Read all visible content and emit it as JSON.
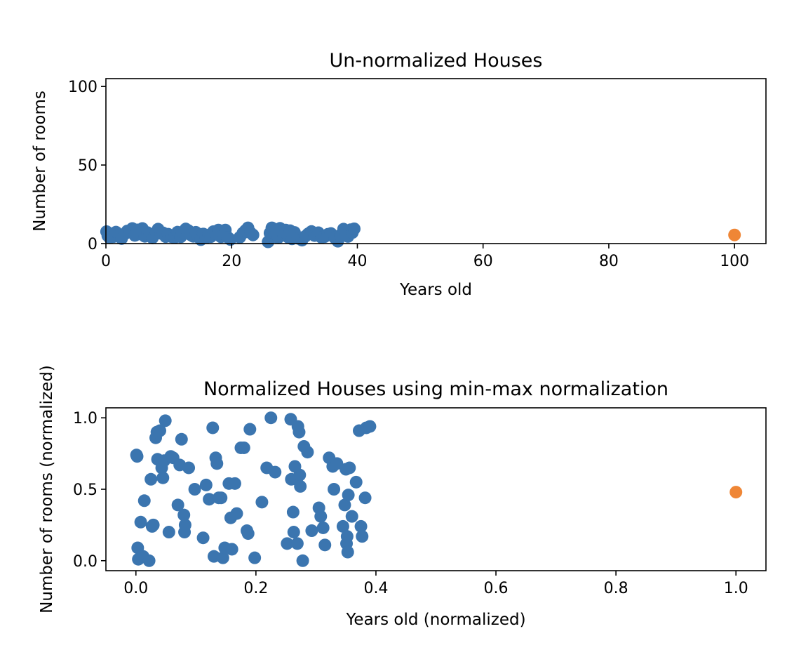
{
  "chart_data": [
    {
      "type": "scatter",
      "title": "Un-normalized Houses",
      "xlabel": "Years old",
      "ylabel": "Number of rooms",
      "xlim": [
        0,
        105
      ],
      "ylim": [
        0,
        105
      ],
      "xticks": [
        0,
        20,
        40,
        60,
        80,
        100
      ],
      "yticks": [
        0,
        50,
        100
      ],
      "xtick_labels": [
        "0",
        "20",
        "40",
        "60",
        "80",
        "100"
      ],
      "ytick_labels": [
        "0",
        "50",
        "100"
      ],
      "grid": false,
      "series": [
        {
          "color": "#3b75af",
          "points": [
            [
              0.1,
              7.6
            ],
            [
              0.3,
              5.0
            ],
            [
              0.6,
              3.7
            ],
            [
              1.2,
              4.4
            ],
            [
              1.6,
              7.3
            ],
            [
              2.1,
              5.1
            ],
            [
              2.5,
              3.2
            ],
            [
              3.0,
              6.2
            ],
            [
              3.4,
              8.0
            ],
            [
              3.8,
              7.7
            ],
            [
              4.2,
              9.6
            ],
            [
              4.6,
              5.2
            ],
            [
              5.0,
              8.7
            ],
            [
              5.3,
              6.1
            ],
            [
              5.8,
              9.6
            ],
            [
              6.2,
              4.6
            ],
            [
              6.6,
              7.0
            ],
            [
              7.0,
              5.8
            ],
            [
              7.4,
              3.6
            ],
            [
              7.7,
              5.6
            ],
            [
              8.0,
              7.0
            ],
            [
              8.3,
              9.2
            ],
            [
              8.7,
              6.5
            ],
            [
              9.1,
              6.8
            ],
            [
              9.5,
              4.4
            ],
            [
              9.9,
              6.0
            ],
            [
              10.4,
              4.4
            ],
            [
              10.9,
              3.8
            ],
            [
              11.4,
              7.3
            ],
            [
              11.9,
              4.3
            ],
            [
              12.3,
              6.7
            ],
            [
              12.7,
              9.3
            ],
            [
              13.1,
              8.3
            ],
            [
              13.5,
              5.5
            ],
            [
              13.9,
              4.6
            ],
            [
              14.3,
              7.2
            ],
            [
              14.7,
              4.1
            ],
            [
              15.1,
              2.5
            ],
            [
              15.5,
              6.1
            ],
            [
              15.9,
              3.8
            ],
            [
              16.3,
              5.4
            ],
            [
              16.7,
              4.4
            ],
            [
              17.1,
              7.6
            ],
            [
              17.5,
              6.3
            ],
            [
              17.9,
              8.6
            ],
            [
              18.3,
              4.3
            ],
            [
              18.7,
              6.2
            ],
            [
              19.0,
              8.6
            ],
            [
              19.4,
              3.9
            ],
            [
              19.8,
              2.6
            ],
            [
              21.3,
              4.0
            ],
            [
              21.8,
              6.7
            ],
            [
              22.2,
              8.3
            ],
            [
              22.6,
              10.0
            ],
            [
              23.0,
              6.9
            ],
            [
              23.4,
              5.5
            ],
            [
              25.8,
              1.1
            ],
            [
              26.1,
              6.7
            ],
            [
              26.4,
              10.0
            ],
            [
              26.8,
              6.4
            ],
            [
              27.1,
              8.7
            ],
            [
              27.4,
              3.7
            ],
            [
              27.7,
              9.7
            ],
            [
              28.0,
              7.5
            ],
            [
              28.3,
              5.4
            ],
            [
              28.6,
              8.6
            ],
            [
              29.0,
              4.0
            ],
            [
              29.3,
              8.2
            ],
            [
              29.6,
              3.0
            ],
            [
              30.0,
              7.1
            ],
            [
              30.6,
              3.3
            ],
            [
              31.2,
              2.2
            ],
            [
              31.7,
              4.6
            ],
            [
              32.2,
              6.3
            ],
            [
              32.7,
              7.7
            ],
            [
              33.2,
              5.1
            ],
            [
              33.8,
              6.9
            ],
            [
              34.3,
              3.9
            ],
            [
              34.8,
              4.4
            ],
            [
              35.3,
              5.9
            ],
            [
              35.8,
              6.4
            ],
            [
              36.4,
              3.7
            ],
            [
              36.9,
              1.5
            ],
            [
              37.3,
              5.3
            ],
            [
              37.8,
              9.2
            ],
            [
              38.2,
              6.5
            ],
            [
              38.5,
              4.5
            ],
            [
              38.9,
              8.8
            ],
            [
              39.2,
              7.0
            ],
            [
              39.5,
              9.4
            ]
          ]
        },
        {
          "color": "#ef8636",
          "points": [
            [
              100,
              5.5
            ]
          ]
        }
      ]
    },
    {
      "type": "scatter",
      "title": "Normalized Houses using min-max normalization",
      "xlabel": "Years old (normalized)",
      "ylabel": "Number of rooms (normalized)",
      "xlim": [
        -0.05,
        1.05
      ],
      "ylim": [
        -0.07,
        1.07
      ],
      "xticks": [
        0.0,
        0.2,
        0.4,
        0.6,
        0.8,
        1.0
      ],
      "yticks": [
        0.0,
        0.5,
        1.0
      ],
      "xtick_labels": [
        "0.0",
        "0.2",
        "0.4",
        "0.6",
        "0.8",
        "1.0"
      ],
      "ytick_labels": [
        "0.0",
        "0.5",
        "1.0"
      ],
      "grid": false,
      "series": [
        {
          "color": "#3b75af",
          "points": [
            [
              0.001,
              0.74
            ],
            [
              0.002,
              0.73
            ],
            [
              0.003,
              0.09
            ],
            [
              0.004,
              0.01
            ],
            [
              0.008,
              0.27
            ],
            [
              0.012,
              0.03
            ],
            [
              0.014,
              0.42
            ],
            [
              0.022,
              0.0
            ],
            [
              0.025,
              0.57
            ],
            [
              0.027,
              0.24
            ],
            [
              0.029,
              0.25
            ],
            [
              0.033,
              0.86
            ],
            [
              0.035,
              0.9
            ],
            [
              0.036,
              0.71
            ],
            [
              0.04,
              0.91
            ],
            [
              0.043,
              0.65
            ],
            [
              0.045,
              0.58
            ],
            [
              0.047,
              0.7
            ],
            [
              0.049,
              0.98
            ],
            [
              0.055,
              0.2
            ],
            [
              0.058,
              0.73
            ],
            [
              0.062,
              0.72
            ],
            [
              0.07,
              0.39
            ],
            [
              0.073,
              0.67
            ],
            [
              0.076,
              0.85
            ],
            [
              0.08,
              0.32
            ],
            [
              0.081,
              0.2
            ],
            [
              0.082,
              0.25
            ],
            [
              0.088,
              0.65
            ],
            [
              0.098,
              0.5
            ],
            [
              0.112,
              0.16
            ],
            [
              0.117,
              0.53
            ],
            [
              0.122,
              0.43
            ],
            [
              0.128,
              0.93
            ],
            [
              0.13,
              0.03
            ],
            [
              0.133,
              0.72
            ],
            [
              0.135,
              0.68
            ],
            [
              0.138,
              0.44
            ],
            [
              0.142,
              0.44
            ],
            [
              0.145,
              0.02
            ],
            [
              0.148,
              0.09
            ],
            [
              0.155,
              0.54
            ],
            [
              0.158,
              0.3
            ],
            [
              0.16,
              0.08
            ],
            [
              0.165,
              0.54
            ],
            [
              0.168,
              0.33
            ],
            [
              0.175,
              0.79
            ],
            [
              0.18,
              0.79
            ],
            [
              0.185,
              0.21
            ],
            [
              0.187,
              0.19
            ],
            [
              0.19,
              0.92
            ],
            [
              0.198,
              0.02
            ],
            [
              0.21,
              0.41
            ],
            [
              0.218,
              0.65
            ],
            [
              0.225,
              1.0
            ],
            [
              0.232,
              0.62
            ],
            [
              0.252,
              0.12
            ],
            [
              0.258,
              0.99
            ],
            [
              0.259,
              0.57
            ],
            [
              0.262,
              0.34
            ],
            [
              0.263,
              0.2
            ],
            [
              0.265,
              0.66
            ],
            [
              0.268,
              0.57
            ],
            [
              0.269,
              0.12
            ],
            [
              0.27,
              0.94
            ],
            [
              0.272,
              0.9
            ],
            [
              0.273,
              0.6
            ],
            [
              0.274,
              0.52
            ],
            [
              0.278,
              0.0
            ],
            [
              0.28,
              0.8
            ],
            [
              0.286,
              0.76
            ],
            [
              0.293,
              0.21
            ],
            [
              0.305,
              0.37
            ],
            [
              0.308,
              0.31
            ],
            [
              0.312,
              0.23
            ],
            [
              0.315,
              0.11
            ],
            [
              0.322,
              0.72
            ],
            [
              0.328,
              0.66
            ],
            [
              0.33,
              0.5
            ],
            [
              0.335,
              0.68
            ],
            [
              0.345,
              0.24
            ],
            [
              0.348,
              0.39
            ],
            [
              0.35,
              0.64
            ],
            [
              0.351,
              0.12
            ],
            [
              0.352,
              0.17
            ],
            [
              0.353,
              0.06
            ],
            [
              0.354,
              0.46
            ],
            [
              0.356,
              0.65
            ],
            [
              0.36,
              0.31
            ],
            [
              0.367,
              0.55
            ],
            [
              0.372,
              0.91
            ],
            [
              0.375,
              0.24
            ],
            [
              0.377,
              0.17
            ],
            [
              0.382,
              0.44
            ],
            [
              0.384,
              0.93
            ],
            [
              0.39,
              0.94
            ]
          ]
        },
        {
          "color": "#ef8636",
          "points": [
            [
              1.0,
              0.48
            ]
          ]
        }
      ]
    }
  ]
}
